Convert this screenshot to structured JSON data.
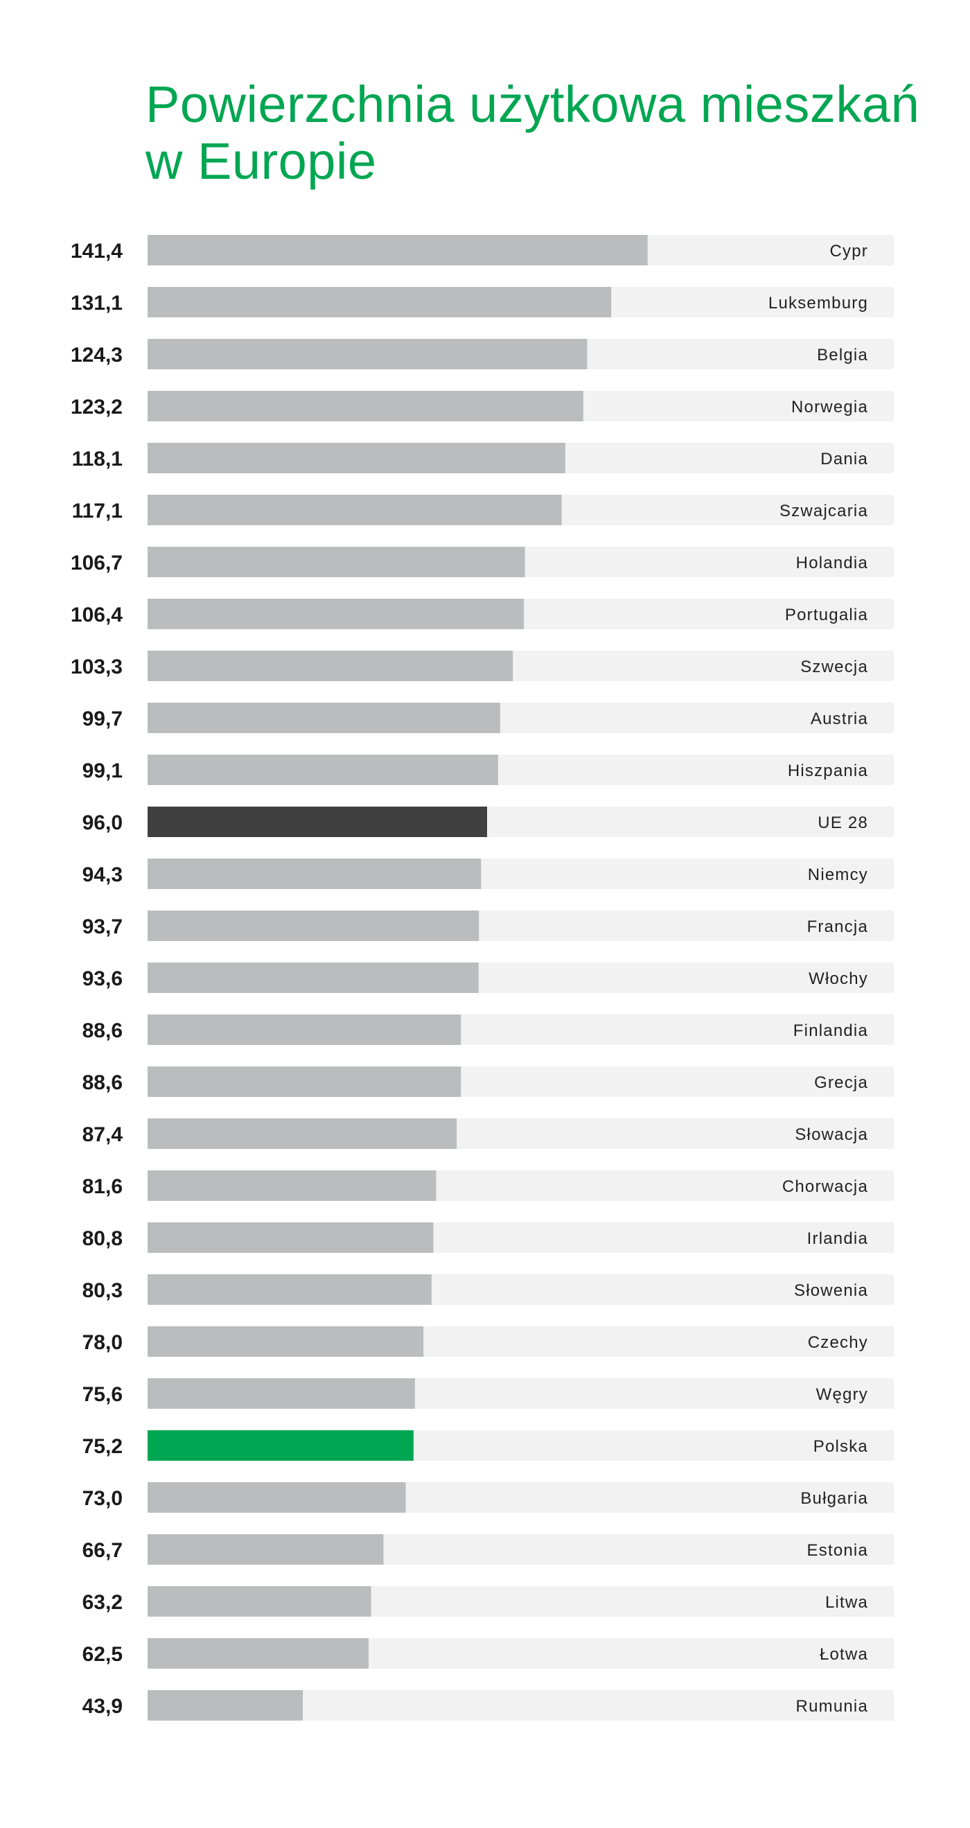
{
  "title": {
    "line1": "Powierzchnia użytkowa mieszkań",
    "line2": "w Europie"
  },
  "colors": {
    "title": "#00a651",
    "track": "#f2f2f2",
    "bar": "#bbbcbe",
    "highlight_eu": "#404041",
    "highlight_pl": "#00a651"
  },
  "chart_data": {
    "type": "bar",
    "orientation": "horizontal",
    "title": "Powierzchnia użytkowa mieszkań w Europie",
    "xlabel": "",
    "ylabel": "",
    "xlim": [
      0,
      211
    ],
    "categories": [
      "Cypr",
      "Luksemburg",
      "Belgia",
      "Norwegia",
      "Dania",
      "Szwajcaria",
      "Holandia",
      "Portugalia",
      "Szwecja",
      "Austria",
      "Hiszpania",
      "UE 28",
      "Niemcy",
      "Francja",
      "Włochy",
      "Finlandia",
      "Grecja",
      "Słowacja",
      "Chorwacja",
      "Irlandia",
      "Słowenia",
      "Czechy",
      "Węgry",
      "Polska",
      "Bułgaria",
      "Estonia",
      "Litwa",
      "Łotwa",
      "Rumunia"
    ],
    "values": [
      141.4,
      131.1,
      124.3,
      123.2,
      118.1,
      117.1,
      106.7,
      106.4,
      103.3,
      99.7,
      99.1,
      96.0,
      94.3,
      93.7,
      93.6,
      88.6,
      88.6,
      87.4,
      81.6,
      80.8,
      80.3,
      78.0,
      75.6,
      75.2,
      73.0,
      66.7,
      63.2,
      62.5,
      43.9
    ],
    "value_labels": [
      "141,4",
      "131,1",
      "124,3",
      "123,2",
      "118,1",
      "117,1",
      "106,7",
      "106,4",
      "103,3",
      "99,7",
      "99,1",
      "96,0",
      "94,3",
      "93,7",
      "93,6",
      "88,6",
      "88,6",
      "87,4",
      "81,6",
      "80,8",
      "80,3",
      "78,0",
      "75,6",
      "75,2",
      "73,0",
      "66,7",
      "63,2",
      "62,5",
      "43,9"
    ],
    "highlights": {
      "UE 28": "eu",
      "Polska": "pl"
    }
  }
}
